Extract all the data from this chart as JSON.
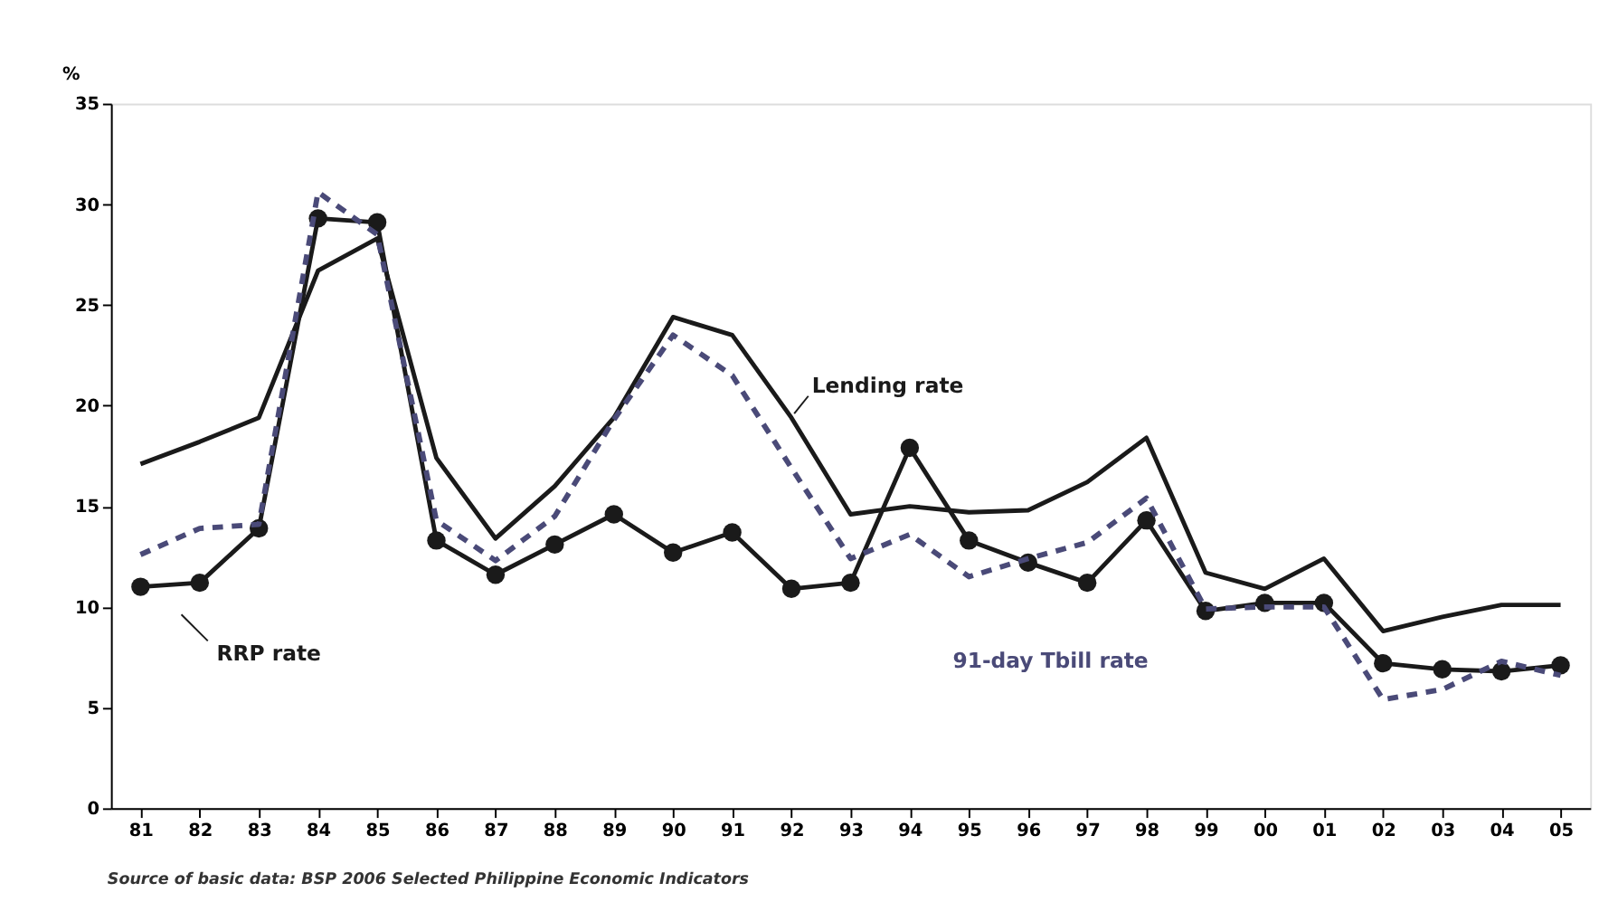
{
  "chart_data": {
    "type": "line",
    "ylabel": "%",
    "categories": [
      "81",
      "82",
      "83",
      "84",
      "85",
      "86",
      "87",
      "88",
      "89",
      "90",
      "91",
      "92",
      "93",
      "94",
      "95",
      "96",
      "97",
      "98",
      "99",
      "00",
      "01",
      "02",
      "03",
      "04",
      "05"
    ],
    "series": [
      {
        "name": "Lending rate",
        "color": "#1a1a1a",
        "line_style": "solid",
        "marker": "none",
        "values": [
          17.1,
          18.2,
          19.4,
          26.7,
          28.3,
          17.4,
          13.4,
          16.0,
          19.4,
          24.4,
          23.5,
          19.4,
          14.6,
          15.0,
          14.7,
          14.8,
          16.2,
          18.4,
          11.7,
          10.9,
          12.4,
          8.8,
          9.5,
          10.1,
          10.1
        ]
      },
      {
        "name": "RRP rate",
        "color": "#1a1a1a",
        "line_style": "solid",
        "marker": "circle",
        "values": [
          11.0,
          11.2,
          13.9,
          29.3,
          29.1,
          13.3,
          11.6,
          13.1,
          14.6,
          12.7,
          13.7,
          10.9,
          11.2,
          17.9,
          13.3,
          12.2,
          11.2,
          14.3,
          9.8,
          10.2,
          10.2,
          7.2,
          6.9,
          6.8,
          7.1
        ]
      },
      {
        "name": "91-day Tbill rate",
        "color": "#4a4a78",
        "line_style": "dashed",
        "marker": "none",
        "values": [
          12.6,
          13.9,
          14.1,
          30.6,
          28.5,
          14.3,
          12.3,
          14.5,
          19.3,
          23.5,
          21.5,
          16.9,
          12.4,
          13.6,
          11.5,
          12.4,
          13.2,
          15.4,
          9.9,
          10.0,
          10.0,
          5.4,
          5.9,
          7.3,
          6.6
        ]
      }
    ],
    "ylim": [
      0,
      35
    ],
    "yticks": [
      0,
      5,
      10,
      15,
      20,
      25,
      30,
      35
    ],
    "grid": false,
    "annotations": [
      "Source of basic data:  BSP 2006 Selected Philippine Economic Indicators"
    ]
  }
}
